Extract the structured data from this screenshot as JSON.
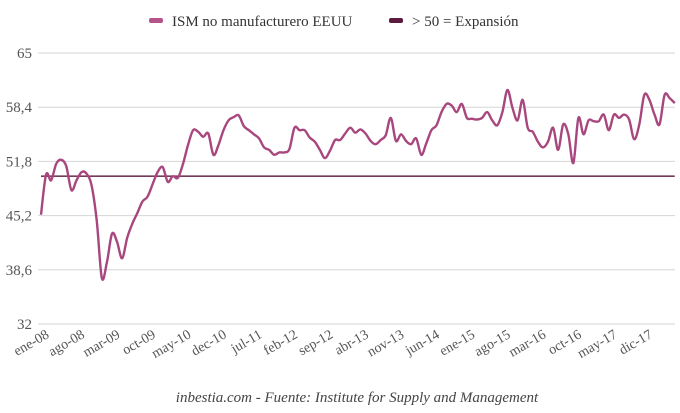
{
  "chart_data": {
    "type": "line",
    "title": "",
    "xlabel": "",
    "ylabel": "",
    "ylim": [
      32,
      65
    ],
    "yticks": [
      "65",
      "58,4",
      "51,8",
      "45,2",
      "38,6",
      "32"
    ],
    "ytick_values": [
      65,
      58.4,
      51.8,
      45.2,
      38.6,
      32
    ],
    "grid": true,
    "legend_position": "top-center",
    "x_start": "ene-08",
    "x_tick_labels": [
      "ene-08",
      "ago-08",
      "mar-09",
      "oct-09",
      "may-10",
      "dec-10",
      "jul-11",
      "feb-12",
      "sep-12",
      "abr-13",
      "nov-13",
      "jun-14",
      "ene-15",
      "ago-15",
      "mar-16",
      "oct-16",
      "may-17",
      "dic-17"
    ],
    "x_tick_every_months": 7,
    "series": [
      {
        "name": "ISM no manufacturero EEUU",
        "color": "#a8477e",
        "values": [
          45.3,
          50.2,
          49.5,
          51.5,
          52.0,
          51.2,
          48.3,
          49.5,
          50.5,
          50.3,
          48.8,
          44.5,
          37.6,
          39.5,
          43.0,
          42.0,
          40.0,
          42.5,
          44.2,
          45.5,
          46.9,
          47.5,
          49.0,
          50.5,
          51.1,
          49.3,
          50.0,
          49.8,
          51.5,
          53.8,
          55.6,
          55.4,
          54.8,
          55.2,
          52.6,
          53.8,
          55.6,
          56.8,
          57.2,
          57.4,
          56.1,
          55.6,
          55.1,
          54.6,
          53.5,
          53.2,
          52.6,
          52.9,
          52.9,
          53.3,
          55.9,
          55.6,
          55.6,
          54.7,
          54.2,
          53.2,
          52.2,
          53.1,
          54.4,
          54.4,
          55.2,
          55.9,
          55.3,
          55.7,
          55.2,
          54.3,
          53.9,
          54.4,
          55.0,
          57.1,
          54.3,
          55.1,
          54.3,
          53.9,
          54.6,
          52.6,
          54.0,
          55.6,
          56.2,
          57.8,
          58.8,
          58.6,
          57.8,
          58.8,
          57.1,
          57.0,
          56.9,
          57.1,
          57.8,
          56.8,
          56.2,
          57.8,
          60.5,
          58.3,
          56.8,
          59.3,
          55.9,
          55.4,
          54.2,
          53.5,
          54.2,
          55.9,
          53.2,
          56.3,
          55.1,
          51.6,
          57.1,
          55.1,
          56.8,
          56.7,
          56.7,
          57.5,
          55.6,
          57.5,
          57.1,
          57.5,
          56.9,
          54.5,
          56.3,
          59.9,
          59.3,
          57.5,
          56.3,
          59.9,
          59.5,
          58.9
        ]
      },
      {
        "name": "> 50 = Expansión",
        "color": "#5c1a3c",
        "constant": 50
      }
    ]
  },
  "legend": {
    "items": [
      {
        "label": "ISM no manufacturero EEUU",
        "color": "#b5538b"
      },
      {
        "label": "> 50 = Expansión",
        "color": "#5c1a3c"
      }
    ]
  },
  "footer": {
    "source_text": "inbestia.com - Fuente: Institute for Supply and Management"
  }
}
